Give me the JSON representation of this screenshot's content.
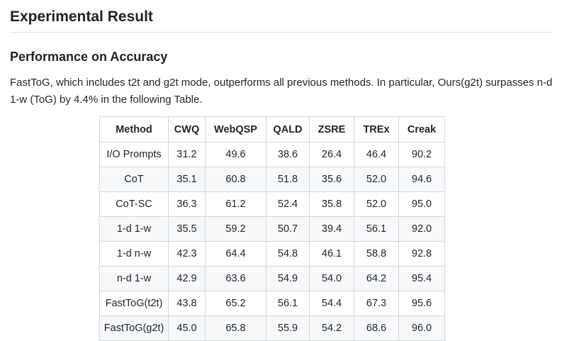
{
  "section_title": "Experimental Result",
  "subsection_title": "Performance on Accuracy",
  "intro_text": "FastToG, which includes t2t and g2t mode, outperforms all previous methods. In particular, Ours(g2t) surpasses n-d 1-w (ToG) by 4.4% in the following Table.",
  "table": {
    "headers": [
      "Method",
      "CWQ",
      "WebQSP",
      "QALD",
      "ZSRE",
      "TREx",
      "Creak"
    ],
    "rows": [
      [
        "I/O Prompts",
        "31.2",
        "49.6",
        "38.6",
        "26.4",
        "46.4",
        "90.2"
      ],
      [
        "CoT",
        "35.1",
        "60.8",
        "51.8",
        "35.6",
        "52.0",
        "94.6"
      ],
      [
        "CoT-SC",
        "36.3",
        "61.2",
        "52.4",
        "35.8",
        "52.0",
        "95.0"
      ],
      [
        "1-d 1-w",
        "35.5",
        "59.2",
        "50.7",
        "39.4",
        "56.1",
        "92.0"
      ],
      [
        "1-d n-w",
        "42.3",
        "64.4",
        "54.8",
        "46.1",
        "58.8",
        "92.8"
      ],
      [
        "n-d 1-w",
        "42.9",
        "63.6",
        "54.9",
        "54.0",
        "64.2",
        "95.4"
      ],
      [
        "FastToG(t2t)",
        "43.8",
        "65.2",
        "56.1",
        "54.4",
        "67.3",
        "95.6"
      ],
      [
        "FastToG(g2t)",
        "45.0",
        "65.8",
        "55.9",
        "54.2",
        "68.6",
        "96.0"
      ]
    ]
  }
}
